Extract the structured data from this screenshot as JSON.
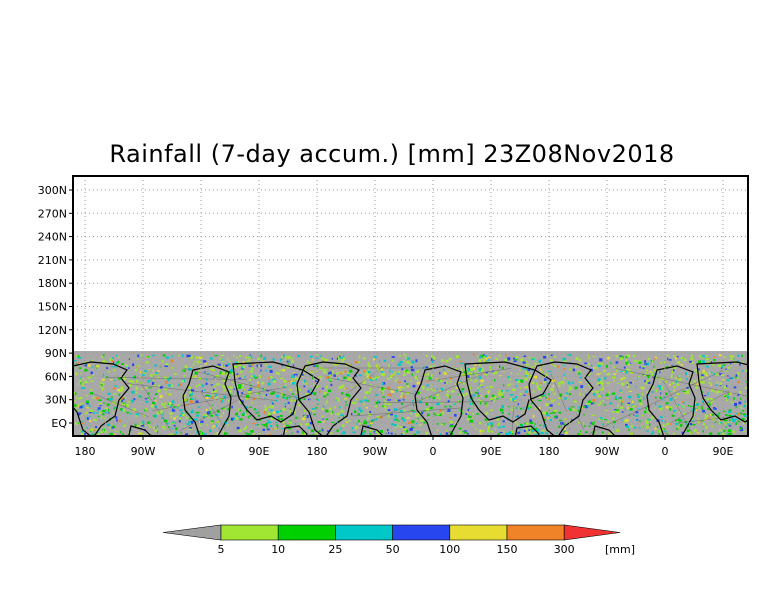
{
  "title": "Rainfall (7-day accum.) [mm] 23Z08Nov2018",
  "map": {
    "lat_labels": [
      "300N",
      "270N",
      "240N",
      "210N",
      "180N",
      "150N",
      "120N",
      "90N",
      "60N",
      "30N",
      "EQ"
    ],
    "lon_labels": [
      "180",
      "90W",
      "0",
      "90E",
      "180",
      "90W",
      "0",
      "90E",
      "180",
      "90W",
      "0",
      "90E"
    ],
    "grid": "dotted",
    "shaded_region_color": "#a8a8a8"
  },
  "colorbar": {
    "unit": "[mm]",
    "below_color": "#a0a0a0",
    "above_color": "#f03232",
    "colors": [
      "#a0e632",
      "#00d000",
      "#00c8c8",
      "#2846f0",
      "#e6dc32",
      "#f08228"
    ],
    "labels": [
      "5",
      "10",
      "25",
      "50",
      "100",
      "150",
      "300"
    ]
  }
}
